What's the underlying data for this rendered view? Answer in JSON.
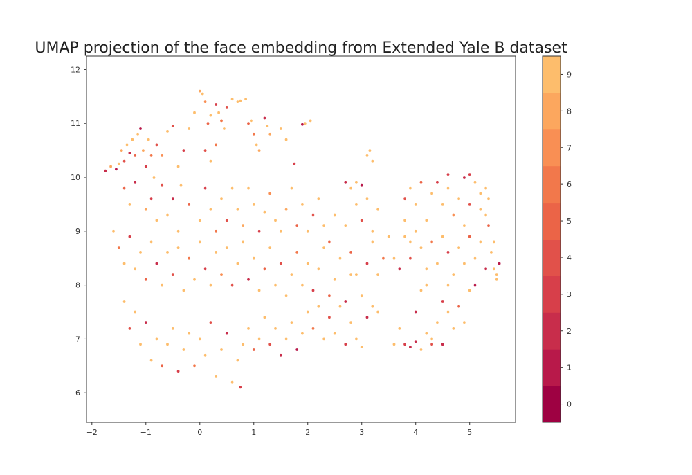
{
  "chart_data": {
    "type": "scatter",
    "title": "UMAP projection of the face embedding from Extended Yale B dataset",
    "xlabel": "",
    "ylabel": "",
    "xlim": [
      -2.1,
      5.85
    ],
    "ylim": [
      5.45,
      12.25
    ],
    "xticks": [
      "−2",
      "−1",
      "0",
      "1",
      "2",
      "3",
      "4",
      "5"
    ],
    "yticks": [
      "6",
      "7",
      "8",
      "9",
      "10",
      "11",
      "12"
    ],
    "grid": false,
    "legend": "none",
    "colorbar": {
      "colormap": "Spectral",
      "range": [
        -0.5,
        9.5
      ],
      "ticks": [
        "0",
        "1",
        "2",
        "3",
        "4",
        "5",
        "6",
        "7",
        "8",
        "9"
      ]
    },
    "class_colors": [
      "#9e0142",
      "#b8194a",
      "#c82d4b",
      "#d73f4a",
      "#e1514a",
      "#eb6447",
      "#f2784b",
      "#f98f54",
      "#fca75e",
      "#fdbd6c"
    ],
    "points": [
      [
        -1.75,
        10.12,
        2
      ],
      [
        -1.65,
        10.2,
        8
      ],
      [
        -1.55,
        10.15,
        1
      ],
      [
        -1.5,
        10.25,
        9
      ],
      [
        -1.45,
        10.5,
        8
      ],
      [
        -1.4,
        10.3,
        4
      ],
      [
        -1.35,
        10.6,
        9
      ],
      [
        -1.3,
        10.45,
        2
      ],
      [
        -1.25,
        10.7,
        9
      ],
      [
        -1.2,
        10.4,
        5
      ],
      [
        -1.15,
        10.8,
        9
      ],
      [
        -1.1,
        10.9,
        1
      ],
      [
        -1.05,
        10.5,
        8
      ],
      [
        -1.0,
        10.2,
        3
      ],
      [
        -0.95,
        10.7,
        9
      ],
      [
        -0.9,
        10.4,
        6
      ],
      [
        -0.85,
        10.0,
        9
      ],
      [
        -0.8,
        10.6,
        4
      ],
      [
        -0.7,
        10.4,
        7
      ],
      [
        -0.6,
        10.85,
        9
      ],
      [
        -0.5,
        10.95,
        4
      ],
      [
        -0.4,
        10.2,
        9
      ],
      [
        -0.3,
        10.5,
        3
      ],
      [
        -0.2,
        10.9,
        9
      ],
      [
        -0.1,
        11.2,
        9
      ],
      [
        0.0,
        11.6,
        8
      ],
      [
        0.05,
        11.55,
        9
      ],
      [
        0.1,
        11.4,
        7
      ],
      [
        0.15,
        11.0,
        5
      ],
      [
        0.2,
        11.15,
        9
      ],
      [
        0.3,
        11.35,
        3
      ],
      [
        0.35,
        11.2,
        9
      ],
      [
        0.4,
        11.05,
        6
      ],
      [
        0.45,
        10.9,
        9
      ],
      [
        0.5,
        11.3,
        4
      ],
      [
        0.6,
        11.45,
        9
      ],
      [
        0.7,
        11.4,
        9
      ],
      [
        0.75,
        11.42,
        9
      ],
      [
        0.85,
        11.45,
        9
      ],
      [
        0.9,
        11.0,
        5
      ],
      [
        0.95,
        11.05,
        9
      ],
      [
        1.0,
        10.8,
        6
      ],
      [
        1.05,
        10.6,
        9
      ],
      [
        1.1,
        10.5,
        8
      ],
      [
        1.2,
        11.1,
        2
      ],
      [
        1.25,
        10.95,
        9
      ],
      [
        1.3,
        10.8,
        8
      ],
      [
        1.5,
        10.9,
        9
      ],
      [
        1.6,
        10.7,
        9
      ],
      [
        1.75,
        10.25,
        3
      ],
      [
        1.9,
        10.98,
        1
      ],
      [
        1.95,
        11.0,
        9
      ],
      [
        2.05,
        11.05,
        9
      ],
      [
        0.3,
        10.6,
        6
      ],
      [
        0.2,
        10.3,
        9
      ],
      [
        0.1,
        10.5,
        4
      ],
      [
        -0.35,
        9.85,
        9
      ],
      [
        -1.4,
        9.8,
        5
      ],
      [
        -1.3,
        9.5,
        9
      ],
      [
        -1.2,
        9.9,
        2
      ],
      [
        -1.0,
        9.4,
        8
      ],
      [
        -0.9,
        9.6,
        3
      ],
      [
        -0.8,
        9.2,
        9
      ],
      [
        -0.7,
        9.85,
        4
      ],
      [
        -0.6,
        9.3,
        9
      ],
      [
        -0.5,
        9.6,
        2
      ],
      [
        -0.4,
        9.0,
        9
      ],
      [
        -0.2,
        9.5,
        5
      ],
      [
        0.0,
        9.2,
        9
      ],
      [
        0.1,
        9.8,
        3
      ],
      [
        0.2,
        9.4,
        9
      ],
      [
        0.3,
        9.0,
        6
      ],
      [
        0.4,
        9.6,
        9
      ],
      [
        0.5,
        9.2,
        4
      ],
      [
        0.6,
        9.8,
        9
      ],
      [
        0.7,
        9.4,
        9
      ],
      [
        0.8,
        9.1,
        8
      ],
      [
        0.9,
        9.8,
        9
      ],
      [
        1.0,
        9.5,
        9
      ],
      [
        1.1,
        9.0,
        3
      ],
      [
        1.2,
        9.35,
        9
      ],
      [
        1.3,
        9.7,
        7
      ],
      [
        1.4,
        9.2,
        9
      ],
      [
        1.5,
        9.0,
        9
      ],
      [
        1.6,
        9.4,
        8
      ],
      [
        1.7,
        9.8,
        9
      ],
      [
        1.8,
        9.1,
        5
      ],
      [
        1.9,
        9.5,
        9
      ],
      [
        2.0,
        9.0,
        9
      ],
      [
        2.1,
        9.3,
        4
      ],
      [
        2.2,
        9.6,
        9
      ],
      [
        2.3,
        9.1,
        9
      ],
      [
        2.4,
        8.8,
        5
      ],
      [
        2.5,
        9.3,
        9
      ],
      [
        -1.6,
        9.0,
        9
      ],
      [
        -1.5,
        8.7,
        6
      ],
      [
        -1.4,
        8.4,
        9
      ],
      [
        -1.3,
        8.9,
        3
      ],
      [
        -1.2,
        8.3,
        9
      ],
      [
        -1.1,
        8.6,
        9
      ],
      [
        -1.0,
        8.1,
        5
      ],
      [
        -0.9,
        8.8,
        9
      ],
      [
        -0.8,
        8.4,
        2
      ],
      [
        -0.7,
        8.0,
        9
      ],
      [
        -0.6,
        8.6,
        9
      ],
      [
        -0.5,
        8.2,
        4
      ],
      [
        -0.4,
        8.7,
        9
      ],
      [
        -0.3,
        7.9,
        9
      ],
      [
        -0.2,
        8.5,
        6
      ],
      [
        -0.1,
        8.1,
        9
      ],
      [
        0.0,
        8.8,
        9
      ],
      [
        0.1,
        8.3,
        3
      ],
      [
        0.2,
        8.0,
        9
      ],
      [
        0.3,
        8.6,
        9
      ],
      [
        0.4,
        8.2,
        7
      ],
      [
        0.5,
        8.7,
        9
      ],
      [
        0.6,
        8.0,
        4
      ],
      [
        0.7,
        8.4,
        9
      ],
      [
        0.8,
        8.8,
        9
      ],
      [
        0.9,
        8.1,
        2
      ],
      [
        1.0,
        8.5,
        9
      ],
      [
        1.1,
        7.9,
        9
      ],
      [
        1.2,
        8.3,
        5
      ],
      [
        1.3,
        8.7,
        9
      ],
      [
        1.4,
        8.0,
        9
      ],
      [
        1.5,
        8.4,
        4
      ],
      [
        1.6,
        7.8,
        9
      ],
      [
        1.7,
        8.2,
        9
      ],
      [
        1.8,
        8.6,
        6
      ],
      [
        1.9,
        8.0,
        9
      ],
      [
        2.0,
        8.4,
        9
      ],
      [
        2.1,
        7.9,
        3
      ],
      [
        2.2,
        8.3,
        9
      ],
      [
        2.3,
        8.7,
        9
      ],
      [
        2.4,
        7.8,
        5
      ],
      [
        2.5,
        8.1,
        9
      ],
      [
        2.6,
        8.5,
        9
      ],
      [
        2.7,
        7.7,
        2
      ],
      [
        2.8,
        8.2,
        9
      ],
      [
        -1.4,
        7.7,
        9
      ],
      [
        -1.3,
        7.2,
        4
      ],
      [
        -1.2,
        7.5,
        9
      ],
      [
        -1.1,
        6.9,
        9
      ],
      [
        -1.0,
        7.3,
        2
      ],
      [
        -0.9,
        6.6,
        9
      ],
      [
        -0.8,
        7.0,
        9
      ],
      [
        -0.7,
        6.5,
        5
      ],
      [
        -0.6,
        6.9,
        9
      ],
      [
        -0.5,
        7.2,
        9
      ],
      [
        -0.4,
        6.4,
        3
      ],
      [
        -0.3,
        6.8,
        9
      ],
      [
        -0.2,
        7.1,
        9
      ],
      [
        -0.1,
        6.5,
        6
      ],
      [
        0.0,
        7.0,
        9
      ],
      [
        0.1,
        6.7,
        9
      ],
      [
        0.2,
        7.3,
        4
      ],
      [
        0.3,
        6.3,
        9
      ],
      [
        0.4,
        6.8,
        9
      ],
      [
        0.5,
        7.1,
        2
      ],
      [
        0.6,
        6.2,
        9
      ],
      [
        0.7,
        6.6,
        9
      ],
      [
        0.75,
        6.1,
        3
      ],
      [
        0.8,
        6.9,
        9
      ],
      [
        0.9,
        7.2,
        9
      ],
      [
        1.0,
        6.8,
        5
      ],
      [
        1.1,
        7.0,
        9
      ],
      [
        1.2,
        7.4,
        9
      ],
      [
        1.3,
        6.9,
        4
      ],
      [
        1.4,
        7.2,
        9
      ],
      [
        1.5,
        6.7,
        2
      ],
      [
        1.6,
        7.0,
        9
      ],
      [
        1.7,
        7.3,
        9
      ],
      [
        1.8,
        6.8,
        1
      ],
      [
        1.9,
        7.1,
        9
      ],
      [
        2.0,
        7.5,
        9
      ],
      [
        2.1,
        7.2,
        6
      ],
      [
        2.2,
        7.6,
        9
      ],
      [
        2.3,
        7.0,
        9
      ],
      [
        2.4,
        7.4,
        4
      ],
      [
        2.5,
        7.1,
        9
      ],
      [
        2.6,
        7.6,
        9
      ],
      [
        2.7,
        6.9,
        3
      ],
      [
        2.8,
        7.3,
        9
      ],
      [
        2.9,
        7.0,
        9
      ],
      [
        3.0,
        6.85,
        9
      ],
      [
        3.1,
        7.4,
        2
      ],
      [
        3.2,
        7.6,
        9
      ],
      [
        3.3,
        7.5,
        9
      ],
      [
        2.7,
        9.9,
        2
      ],
      [
        2.8,
        9.8,
        9
      ],
      [
        2.9,
        9.9,
        9
      ],
      [
        3.0,
        9.85,
        1
      ],
      [
        3.1,
        10.4,
        9
      ],
      [
        3.15,
        10.5,
        9
      ],
      [
        3.2,
        10.3,
        9
      ],
      [
        2.9,
        9.5,
        9
      ],
      [
        3.0,
        9.2,
        4
      ],
      [
        3.1,
        9.6,
        9
      ],
      [
        3.2,
        9.0,
        9
      ],
      [
        3.3,
        9.4,
        9
      ],
      [
        2.7,
        9.1,
        9
      ],
      [
        2.8,
        8.6,
        5
      ],
      [
        2.9,
        8.2,
        9
      ],
      [
        3.0,
        7.8,
        9
      ],
      [
        3.1,
        8.4,
        3
      ],
      [
        3.2,
        8.8,
        9
      ],
      [
        3.3,
        8.2,
        9
      ],
      [
        3.4,
        8.5,
        6
      ],
      [
        3.5,
        8.9,
        9
      ],
      [
        3.6,
        8.5,
        9
      ],
      [
        3.7,
        8.3,
        2
      ],
      [
        3.8,
        9.2,
        9
      ],
      [
        3.8,
        9.6,
        4
      ],
      [
        3.9,
        9.8,
        9
      ],
      [
        4.0,
        9.5,
        9
      ],
      [
        4.1,
        9.9,
        5
      ],
      [
        4.2,
        9.2,
        9
      ],
      [
        4.3,
        9.7,
        9
      ],
      [
        4.4,
        9.9,
        3
      ],
      [
        4.5,
        9.5,
        9
      ],
      [
        4.6,
        9.8,
        9
      ],
      [
        4.7,
        9.3,
        7
      ],
      [
        4.8,
        9.6,
        9
      ],
      [
        4.9,
        9.1,
        9
      ],
      [
        5.0,
        9.5,
        4
      ],
      [
        5.1,
        9.9,
        9
      ],
      [
        5.2,
        9.4,
        9
      ],
      [
        5.3,
        9.8,
        9
      ],
      [
        5.35,
        9.6,
        9
      ],
      [
        3.8,
        8.9,
        9
      ],
      [
        3.9,
        8.5,
        4
      ],
      [
        4.0,
        9.0,
        9
      ],
      [
        4.1,
        8.7,
        9
      ],
      [
        4.2,
        8.3,
        9
      ],
      [
        4.3,
        8.8,
        6
      ],
      [
        4.4,
        8.4,
        9
      ],
      [
        4.5,
        8.9,
        9
      ],
      [
        4.6,
        8.6,
        3
      ],
      [
        4.7,
        8.2,
        9
      ],
      [
        4.8,
        8.7,
        9
      ],
      [
        4.9,
        8.4,
        9
      ],
      [
        5.0,
        8.9,
        5
      ],
      [
        5.1,
        8.5,
        9
      ],
      [
        5.2,
        8.8,
        9
      ],
      [
        5.3,
        8.3,
        2
      ],
      [
        5.4,
        8.6,
        9
      ],
      [
        5.5,
        8.2,
        9
      ],
      [
        5.55,
        8.4,
        1
      ],
      [
        3.6,
        6.9,
        9
      ],
      [
        3.7,
        7.2,
        9
      ],
      [
        3.8,
        6.9,
        3
      ],
      [
        3.9,
        6.85,
        2
      ],
      [
        4.0,
        6.95,
        2
      ],
      [
        4.1,
        6.8,
        9
      ],
      [
        4.2,
        7.1,
        9
      ],
      [
        4.3,
        6.9,
        4
      ],
      [
        4.4,
        7.3,
        9
      ],
      [
        4.5,
        6.9,
        2
      ],
      [
        4.6,
        7.5,
        9
      ],
      [
        4.7,
        7.2,
        9
      ],
      [
        4.8,
        7.6,
        5
      ],
      [
        4.9,
        7.3,
        9
      ],
      [
        5.0,
        7.9,
        9
      ],
      [
        5.1,
        8.0,
        1
      ],
      [
        4.5,
        7.7,
        3
      ],
      [
        4.6,
        8.0,
        9
      ],
      [
        4.0,
        7.5,
        2
      ],
      [
        4.1,
        7.9,
        9
      ],
      [
        4.3,
        7.0,
        9
      ],
      [
        3.9,
        8.8,
        9
      ],
      [
        4.2,
        8.0,
        9
      ],
      [
        4.6,
        10.05,
        3
      ],
      [
        4.9,
        10.0,
        2
      ],
      [
        5.0,
        10.05,
        3
      ],
      [
        5.2,
        9.7,
        9
      ],
      [
        5.3,
        9.3,
        9
      ],
      [
        5.35,
        9.1,
        5
      ],
      [
        5.45,
        8.8,
        9
      ],
      [
        5.45,
        8.3,
        9
      ],
      [
        5.5,
        8.1,
        9
      ]
    ]
  }
}
